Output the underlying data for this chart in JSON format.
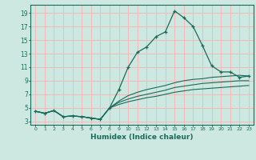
{
  "xlabel": "Humidex (Indice chaleur)",
  "ylabel": "",
  "background_color": "#cce8e0",
  "grid_color": "#f5b8b8",
  "line_color": "#1a6b5a",
  "xlim": [
    -0.5,
    23.5
  ],
  "ylim": [
    2.5,
    20.2
  ],
  "xticks": [
    0,
    1,
    2,
    3,
    4,
    5,
    6,
    7,
    8,
    9,
    10,
    11,
    12,
    13,
    14,
    15,
    16,
    17,
    18,
    19,
    20,
    21,
    22,
    23
  ],
  "yticks": [
    3,
    5,
    7,
    9,
    11,
    13,
    15,
    17,
    19
  ],
  "series": [
    {
      "x": [
        0,
        1,
        2,
        3,
        4,
        5,
        6,
        7,
        8,
        9,
        10,
        11,
        12,
        13,
        14,
        15,
        16,
        17,
        18,
        19,
        20,
        21,
        22,
        23
      ],
      "y": [
        4.5,
        4.2,
        4.6,
        3.7,
        3.8,
        3.7,
        3.5,
        3.3,
        5.0,
        7.7,
        11.0,
        13.2,
        14.0,
        15.5,
        16.2,
        19.3,
        18.3,
        17.0,
        14.2,
        11.2,
        10.3,
        10.3,
        9.5,
        9.7
      ],
      "marker": true
    },
    {
      "x": [
        0,
        1,
        2,
        3,
        4,
        5,
        6,
        7,
        8,
        9,
        10,
        11,
        12,
        13,
        14,
        15,
        16,
        17,
        18,
        19,
        20,
        21,
        22,
        23
      ],
      "y": [
        4.5,
        4.2,
        4.6,
        3.7,
        3.8,
        3.7,
        3.5,
        3.3,
        5.0,
        6.0,
        6.8,
        7.3,
        7.7,
        8.0,
        8.3,
        8.7,
        9.0,
        9.2,
        9.3,
        9.5,
        9.6,
        9.7,
        9.8,
        9.7
      ],
      "marker": false
    },
    {
      "x": [
        0,
        1,
        2,
        3,
        4,
        5,
        6,
        7,
        8,
        9,
        10,
        11,
        12,
        13,
        14,
        15,
        16,
        17,
        18,
        19,
        20,
        21,
        22,
        23
      ],
      "y": [
        4.5,
        4.2,
        4.6,
        3.7,
        3.8,
        3.7,
        3.5,
        3.3,
        5.0,
        5.8,
        6.3,
        6.7,
        7.0,
        7.3,
        7.6,
        8.0,
        8.2,
        8.4,
        8.6,
        8.7,
        8.8,
        8.9,
        9.0,
        9.0
      ],
      "marker": false
    },
    {
      "x": [
        0,
        1,
        2,
        3,
        4,
        5,
        6,
        7,
        8,
        9,
        10,
        11,
        12,
        13,
        14,
        15,
        16,
        17,
        18,
        19,
        20,
        21,
        22,
        23
      ],
      "y": [
        4.5,
        4.2,
        4.6,
        3.7,
        3.8,
        3.7,
        3.5,
        3.3,
        5.0,
        5.5,
        5.9,
        6.2,
        6.5,
        6.7,
        7.0,
        7.3,
        7.5,
        7.7,
        7.8,
        7.9,
        8.0,
        8.1,
        8.2,
        8.3
      ],
      "marker": false
    }
  ]
}
